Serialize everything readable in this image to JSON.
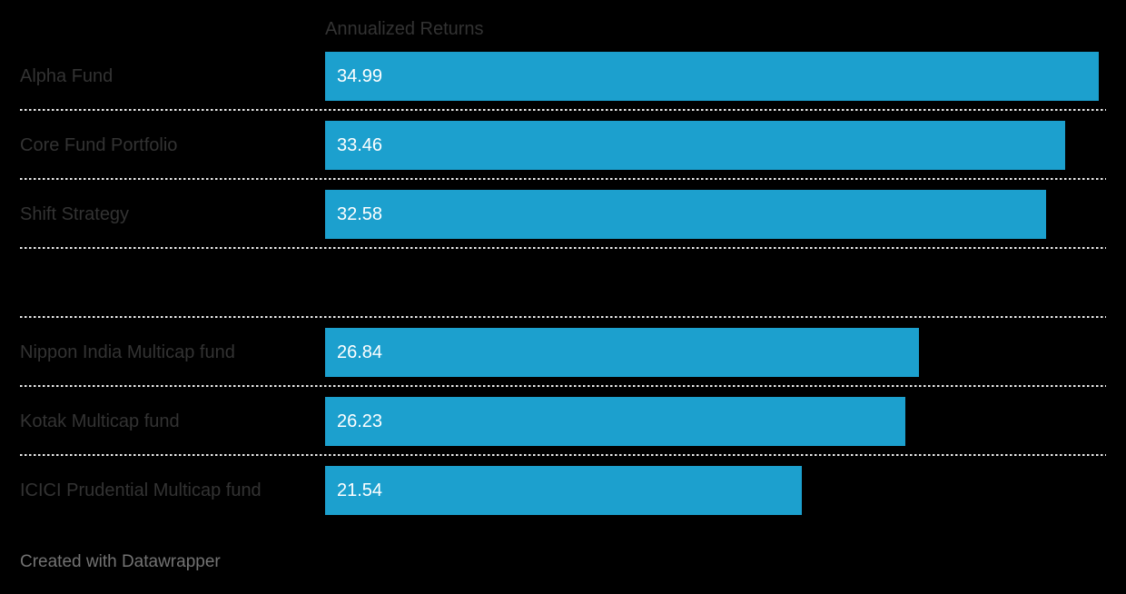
{
  "background_color": "#000000",
  "chart_data": {
    "type": "bar",
    "orientation": "horizontal",
    "title": "",
    "column_header": "Annualized Returns",
    "categories": [
      "Alpha Fund",
      "Core Fund Portfolio",
      "Shift Strategy",
      "",
      "Nippon India Multicap fund",
      "Kotak Multicap fund",
      "ICICI Prudential Multicap fund"
    ],
    "values": [
      34.99,
      33.46,
      32.58,
      null,
      26.84,
      26.23,
      21.54
    ],
    "value_labels": [
      "34.99",
      "33.46",
      "32.58",
      "",
      "26.84",
      "26.23",
      "21.54"
    ],
    "xlabel": "",
    "ylabel": "",
    "xlim": [
      0,
      35.3
    ],
    "grid": false,
    "legend": false,
    "bar_color": "#1CA0CE",
    "value_label_color": "#FFFFFF",
    "category_label_color": "#333333",
    "header_color": "#333333",
    "separator_color": "#E9E9E9",
    "separator_style": "dotted"
  },
  "footer": {
    "attribution": "Created with Datawrapper",
    "color": "#737373"
  }
}
